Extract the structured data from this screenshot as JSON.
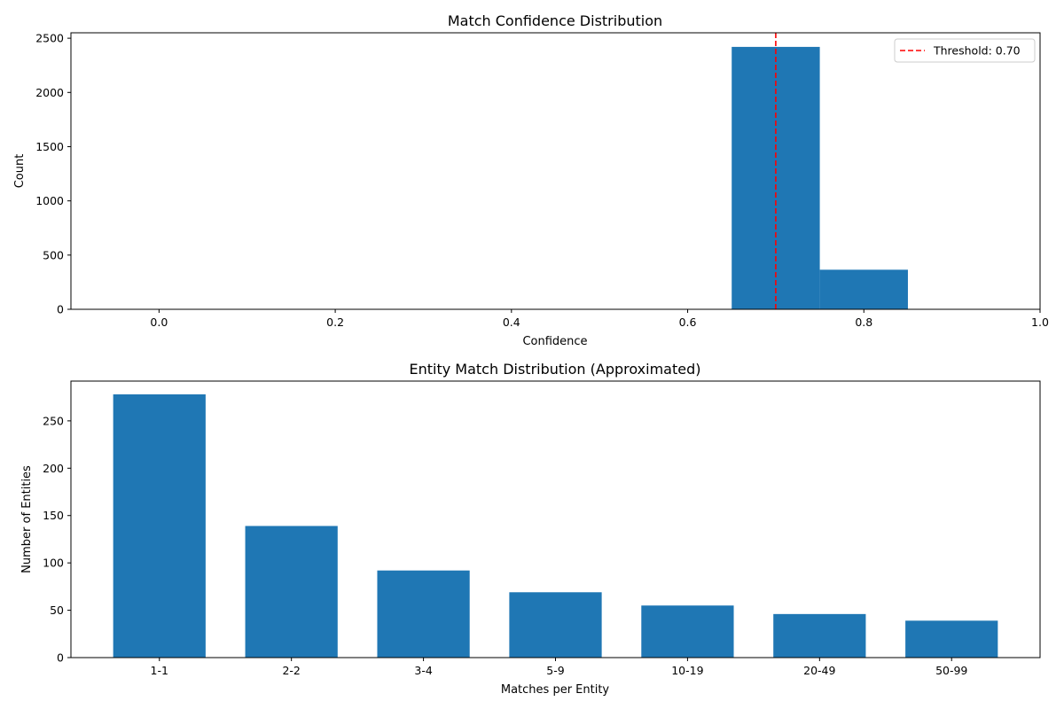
{
  "chart_data": [
    {
      "type": "bar",
      "subtype": "histogram",
      "title": "Match Confidence Distribution",
      "xlabel": "Confidence",
      "ylabel": "Count",
      "xlim": [
        -0.1,
        1.0
      ],
      "ylim": [
        0,
        2550
      ],
      "xticks": [
        0.0,
        0.2,
        0.4,
        0.6,
        0.8,
        1.0
      ],
      "xtick_labels": [
        "0.0",
        "0.2",
        "0.4",
        "0.6",
        "0.8",
        "1.0"
      ],
      "yticks": [
        0,
        500,
        1000,
        1500,
        2000,
        2500
      ],
      "ytick_labels": [
        "0",
        "500",
        "1000",
        "1500",
        "2000",
        "2500"
      ],
      "bins": [
        {
          "x0": 0.65,
          "x1": 0.75,
          "count": 2420
        },
        {
          "x0": 0.75,
          "x1": 0.85,
          "count": 365
        }
      ],
      "bar_color": "#1f77b4",
      "threshold": {
        "value": 0.7,
        "label": "Threshold: 0.70",
        "color": "#ff0000",
        "style": "dashed"
      },
      "legend_position": "top-right",
      "grid": false
    },
    {
      "type": "bar",
      "title": "Entity Match Distribution (Approximated)",
      "xlabel": "Matches per Entity",
      "ylabel": "Number of Entities",
      "categories": [
        "1-1",
        "2-2",
        "3-4",
        "5-9",
        "10-19",
        "20-49",
        "50-99"
      ],
      "values": [
        278,
        139,
        92,
        69,
        55,
        46,
        39
      ],
      "ylim": [
        0,
        292
      ],
      "yticks": [
        0,
        50,
        100,
        150,
        200,
        250
      ],
      "ytick_labels": [
        "0",
        "50",
        "100",
        "150",
        "200",
        "250"
      ],
      "bar_color": "#1f77b4",
      "grid": false
    }
  ]
}
